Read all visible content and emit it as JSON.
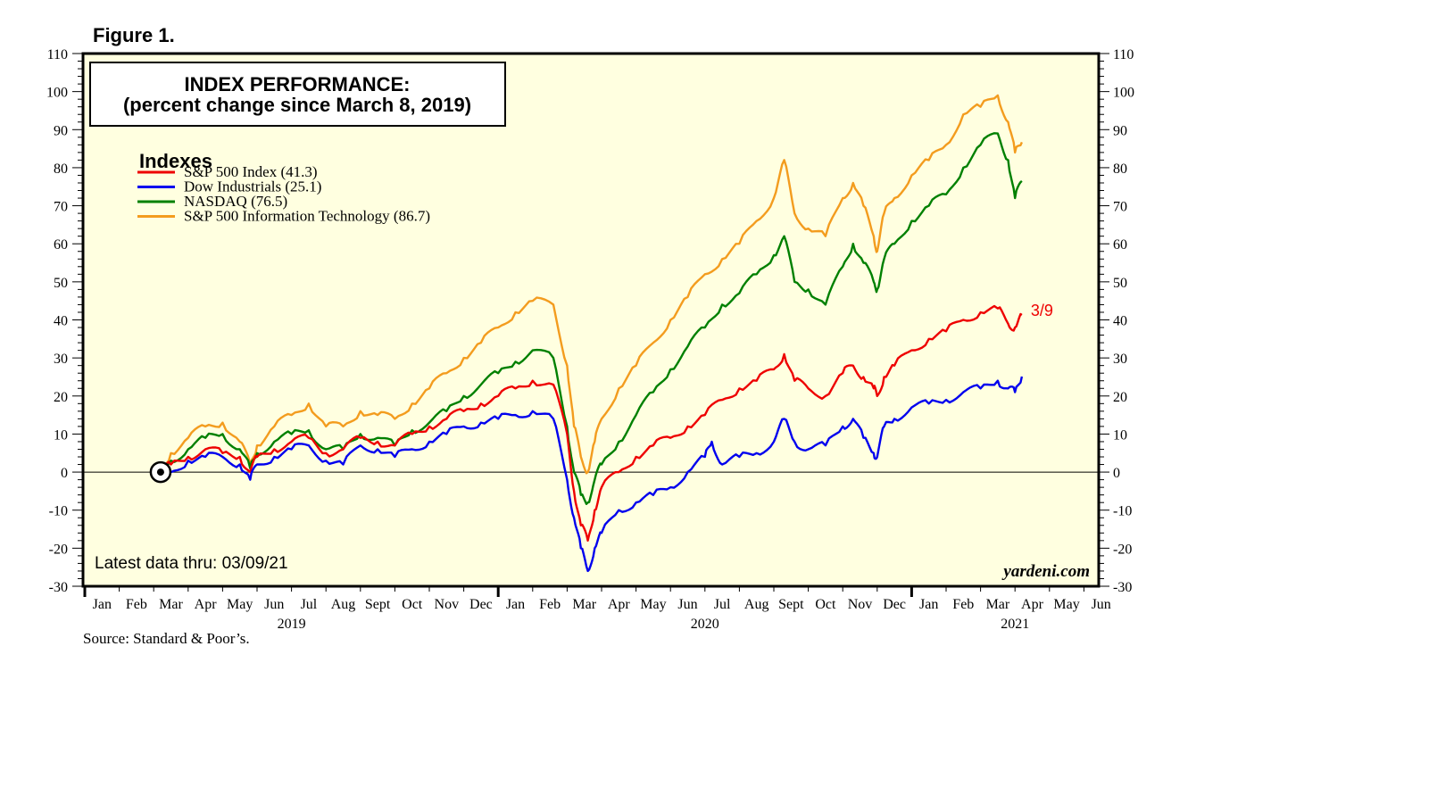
{
  "figure_label": "Figure 1.",
  "source_note": "Source: Standard & Poor’s.",
  "chart_data": {
    "type": "line",
    "title_line1": "INDEX PERFORMANCE:",
    "title_line2": "(percent change since March 8, 2019)",
    "legend_title": "Indexes",
    "latest_note": "Latest data thru: 03/09/21",
    "watermark": "yardeni.com",
    "end_annotation": "3/9",
    "ylim": [
      -30,
      110
    ],
    "yticks": [
      -30,
      -20,
      -10,
      0,
      10,
      20,
      30,
      40,
      50,
      60,
      70,
      80,
      90,
      100,
      110
    ],
    "month_labels": [
      "Jan",
      "Feb",
      "Mar",
      "Apr",
      "May",
      "Jun",
      "Jul",
      "Aug",
      "Sept",
      "Oct",
      "Nov",
      "Dec",
      "Jan",
      "Feb",
      "Mar",
      "Apr",
      "May",
      "Jun",
      "Jul",
      "Aug",
      "Sept",
      "Oct",
      "Nov",
      "Dec",
      "Jan",
      "Feb",
      "Mar",
      "Apr",
      "May",
      "Jun"
    ],
    "year_labels": [
      {
        "label": "2019",
        "month_index": 6
      },
      {
        "label": "2020",
        "month_index": 18
      },
      {
        "label": "2021",
        "month_index": 27
      }
    ],
    "start_marker": {
      "month": 2.2,
      "value": 0
    },
    "series": [
      {
        "name": "S&P 500 Index (41.3)",
        "color": "#ee0000",
        "points": [
          [
            2.2,
            0
          ],
          [
            2.5,
            2
          ],
          [
            3,
            4
          ],
          [
            3.5,
            6
          ],
          [
            4,
            5
          ],
          [
            4.5,
            4
          ],
          [
            4.8,
            0
          ],
          [
            5,
            4
          ],
          [
            5.5,
            6
          ],
          [
            6,
            8
          ],
          [
            6.5,
            9
          ],
          [
            7,
            5
          ],
          [
            7.5,
            6
          ],
          [
            8,
            9
          ],
          [
            8.5,
            8
          ],
          [
            9,
            7
          ],
          [
            9.5,
            10
          ],
          [
            10,
            12
          ],
          [
            10.5,
            14
          ],
          [
            11,
            16
          ],
          [
            11.5,
            18
          ],
          [
            12,
            20
          ],
          [
            12.5,
            22
          ],
          [
            13,
            24
          ],
          [
            13.6,
            23
          ],
          [
            14,
            10
          ],
          [
            14.2,
            -5
          ],
          [
            14.4,
            -14
          ],
          [
            14.6,
            -18
          ],
          [
            14.8,
            -10
          ],
          [
            15,
            -4
          ],
          [
            15.5,
            0
          ],
          [
            16,
            4
          ],
          [
            16.5,
            7
          ],
          [
            17,
            9
          ],
          [
            17.5,
            12
          ],
          [
            18,
            15
          ],
          [
            18.5,
            19
          ],
          [
            19,
            22
          ],
          [
            19.5,
            24
          ],
          [
            20,
            27
          ],
          [
            20.3,
            31
          ],
          [
            20.6,
            24
          ],
          [
            21,
            22
          ],
          [
            21.5,
            20
          ],
          [
            22,
            26
          ],
          [
            22.3,
            28
          ],
          [
            22.6,
            25
          ],
          [
            22.9,
            22
          ],
          [
            23,
            20
          ],
          [
            23.2,
            25
          ],
          [
            23.5,
            28
          ],
          [
            24,
            32
          ],
          [
            24.5,
            35
          ],
          [
            25,
            37
          ],
          [
            25.5,
            40
          ],
          [
            26,
            42
          ],
          [
            26.5,
            43
          ],
          [
            26.8,
            39
          ],
          [
            27,
            38
          ],
          [
            27.2,
            41.3
          ]
        ]
      },
      {
        "name": "Dow Industrials (25.1)",
        "color": "#0000ee",
        "points": [
          [
            2.2,
            0
          ],
          [
            2.5,
            0
          ],
          [
            3,
            3
          ],
          [
            3.5,
            4
          ],
          [
            4,
            4
          ],
          [
            4.5,
            2
          ],
          [
            4.8,
            -2
          ],
          [
            5,
            2
          ],
          [
            5.5,
            4
          ],
          [
            6,
            6
          ],
          [
            6.5,
            7
          ],
          [
            7,
            3
          ],
          [
            7.5,
            2
          ],
          [
            8,
            7
          ],
          [
            8.5,
            6
          ],
          [
            9,
            4
          ],
          [
            9.5,
            6
          ],
          [
            10,
            8
          ],
          [
            10.5,
            10
          ],
          [
            11,
            12
          ],
          [
            11.5,
            13
          ],
          [
            12,
            14
          ],
          [
            12.5,
            15
          ],
          [
            13,
            16
          ],
          [
            13.6,
            14
          ],
          [
            14,
            -2
          ],
          [
            14.2,
            -12
          ],
          [
            14.4,
            -20
          ],
          [
            14.6,
            -26
          ],
          [
            14.8,
            -20
          ],
          [
            15,
            -16
          ],
          [
            15.5,
            -10
          ],
          [
            16,
            -8
          ],
          [
            16.5,
            -6
          ],
          [
            17,
            -4
          ],
          [
            17.5,
            0
          ],
          [
            18,
            4
          ],
          [
            18.2,
            8
          ],
          [
            18.5,
            2
          ],
          [
            19,
            4
          ],
          [
            19.5,
            5
          ],
          [
            20,
            8
          ],
          [
            20.3,
            14
          ],
          [
            20.6,
            8
          ],
          [
            21,
            6
          ],
          [
            21.5,
            7
          ],
          [
            22,
            12
          ],
          [
            22.3,
            14
          ],
          [
            22.6,
            9
          ],
          [
            22.9,
            5
          ],
          [
            23,
            4
          ],
          [
            23.2,
            12
          ],
          [
            23.5,
            14
          ],
          [
            24,
            17
          ],
          [
            24.5,
            18
          ],
          [
            25,
            19
          ],
          [
            25.5,
            21
          ],
          [
            26,
            22
          ],
          [
            26.5,
            24
          ],
          [
            26.8,
            22
          ],
          [
            27,
            21
          ],
          [
            27.2,
            25.1
          ]
        ]
      },
      {
        "name": "NASDAQ (76.5)",
        "color": "#008000",
        "points": [
          [
            2.2,
            0
          ],
          [
            2.5,
            3
          ],
          [
            3,
            6
          ],
          [
            3.5,
            9
          ],
          [
            4,
            10
          ],
          [
            4.5,
            6
          ],
          [
            4.8,
            1
          ],
          [
            5,
            5
          ],
          [
            5.5,
            8
          ],
          [
            6,
            10
          ],
          [
            6.5,
            11
          ],
          [
            7,
            6
          ],
          [
            7.5,
            6
          ],
          [
            8,
            10
          ],
          [
            8.5,
            9
          ],
          [
            9,
            7
          ],
          [
            9.5,
            11
          ],
          [
            10,
            13
          ],
          [
            10.5,
            16
          ],
          [
            11,
            20
          ],
          [
            11.5,
            23
          ],
          [
            12,
            26
          ],
          [
            12.5,
            29
          ],
          [
            13,
            32
          ],
          [
            13.6,
            30
          ],
          [
            14,
            12
          ],
          [
            14.2,
            0
          ],
          [
            14.4,
            -6
          ],
          [
            14.6,
            -8
          ],
          [
            14.8,
            -2
          ],
          [
            15,
            2
          ],
          [
            15.5,
            8
          ],
          [
            16,
            15
          ],
          [
            16.5,
            21
          ],
          [
            17,
            27
          ],
          [
            17.5,
            33
          ],
          [
            18,
            38
          ],
          [
            18.5,
            44
          ],
          [
            19,
            47
          ],
          [
            19.5,
            52
          ],
          [
            20,
            57
          ],
          [
            20.3,
            62
          ],
          [
            20.6,
            50
          ],
          [
            21,
            48
          ],
          [
            21.5,
            44
          ],
          [
            22,
            54
          ],
          [
            22.3,
            60
          ],
          [
            22.6,
            55
          ],
          [
            22.9,
            50
          ],
          [
            23,
            48
          ],
          [
            23.2,
            56
          ],
          [
            23.5,
            60
          ],
          [
            24,
            66
          ],
          [
            24.5,
            70
          ],
          [
            25,
            73
          ],
          [
            25.5,
            80
          ],
          [
            26,
            86
          ],
          [
            26.5,
            89
          ],
          [
            26.8,
            82
          ],
          [
            27,
            72
          ],
          [
            27.2,
            76.5
          ]
        ]
      },
      {
        "name": "S&P 500 Information Technology (86.7)",
        "color": "#f39c1e",
        "points": [
          [
            2.2,
            0
          ],
          [
            2.5,
            5
          ],
          [
            3,
            9
          ],
          [
            3.5,
            12
          ],
          [
            4,
            13
          ],
          [
            4.5,
            8
          ],
          [
            4.8,
            2
          ],
          [
            5,
            7
          ],
          [
            5.5,
            12
          ],
          [
            6,
            15
          ],
          [
            6.5,
            18
          ],
          [
            7,
            12
          ],
          [
            7.5,
            12
          ],
          [
            8,
            16
          ],
          [
            8.5,
            15
          ],
          [
            9,
            14
          ],
          [
            9.5,
            18
          ],
          [
            10,
            22
          ],
          [
            10.5,
            26
          ],
          [
            11,
            30
          ],
          [
            11.5,
            34
          ],
          [
            12,
            38
          ],
          [
            12.5,
            42
          ],
          [
            13,
            45
          ],
          [
            13.6,
            44
          ],
          [
            14,
            28
          ],
          [
            14.2,
            12
          ],
          [
            14.4,
            4
          ],
          [
            14.6,
            0
          ],
          [
            14.8,
            8
          ],
          [
            15,
            14
          ],
          [
            15.5,
            22
          ],
          [
            16,
            28
          ],
          [
            16.5,
            34
          ],
          [
            17,
            40
          ],
          [
            17.5,
            46
          ],
          [
            18,
            52
          ],
          [
            18.5,
            56
          ],
          [
            19,
            60
          ],
          [
            19.5,
            66
          ],
          [
            20,
            72
          ],
          [
            20.3,
            82
          ],
          [
            20.6,
            68
          ],
          [
            21,
            64
          ],
          [
            21.5,
            62
          ],
          [
            22,
            72
          ],
          [
            22.3,
            76
          ],
          [
            22.6,
            70
          ],
          [
            22.9,
            62
          ],
          [
            23,
            58
          ],
          [
            23.2,
            68
          ],
          [
            23.5,
            72
          ],
          [
            24,
            78
          ],
          [
            24.5,
            82
          ],
          [
            25,
            86
          ],
          [
            25.5,
            94
          ],
          [
            26,
            96
          ],
          [
            26.5,
            99
          ],
          [
            26.8,
            92
          ],
          [
            27,
            84
          ],
          [
            27.2,
            86.7
          ]
        ]
      }
    ]
  }
}
